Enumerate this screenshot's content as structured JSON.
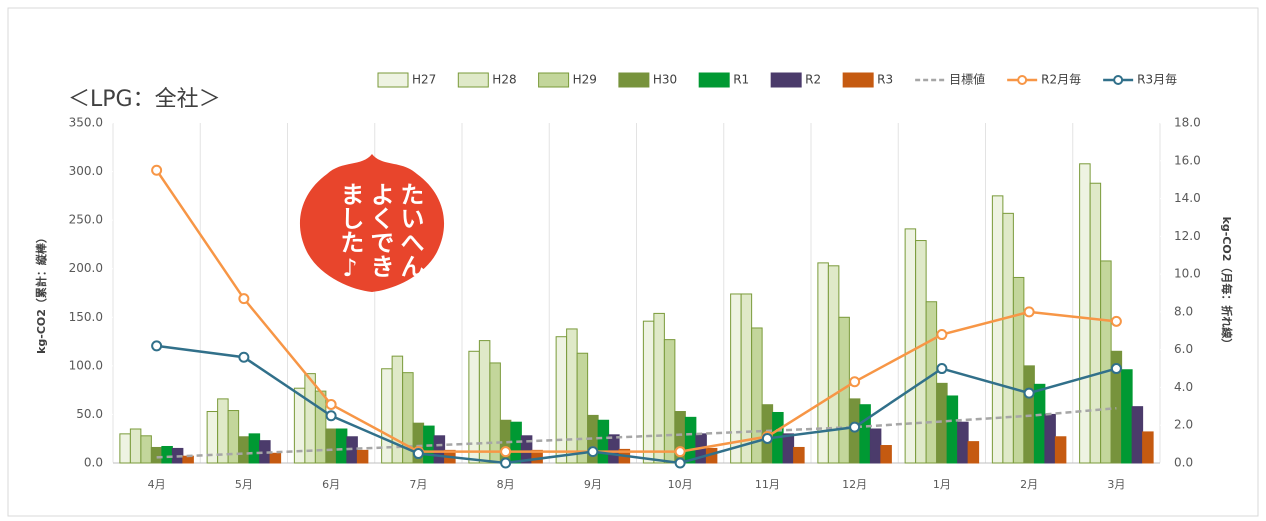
{
  "chart_data": {
    "type": "bar",
    "title": "＜LPG：全社＞",
    "y_label": "kg-CO2（累計：縦棒）",
    "y2_label": "kg-CO2（月毎：折れ線）",
    "annotations": [
      "たいへん",
      "よくでき",
      "ました♪"
    ],
    "categories": [
      "4月",
      "5月",
      "6月",
      "7月",
      "8月",
      "9月",
      "10月",
      "11月",
      "12月",
      "1月",
      "2月",
      "3月"
    ],
    "series": [
      {
        "name": "H27",
        "kind": "bar",
        "color": "#eef3e2",
        "edge": "#7a9a3a",
        "values": [
          30,
          53,
          77,
          97,
          115,
          130,
          146,
          174,
          206,
          241,
          275,
          308
        ]
      },
      {
        "name": "H28",
        "kind": "bar",
        "color": "#dfe9c8",
        "edge": "#7a9a3a",
        "values": [
          35,
          66,
          92,
          110,
          126,
          138,
          154,
          174,
          203,
          229,
          257,
          288
        ]
      },
      {
        "name": "H29",
        "kind": "bar",
        "color": "#c3d69b",
        "edge": "#7a9a3a",
        "values": [
          28,
          54,
          74,
          93,
          103,
          113,
          127,
          139,
          150,
          166,
          191,
          208
        ]
      },
      {
        "name": "H30",
        "kind": "bar",
        "color": "#77933c",
        "edge": "#77933c",
        "values": [
          16,
          27,
          35,
          41,
          44,
          49,
          53,
          60,
          66,
          82,
          100,
          115
        ]
      },
      {
        "name": "R1",
        "kind": "bar",
        "color": "#009933",
        "edge": "#009933",
        "values": [
          17,
          30,
          35,
          38,
          42,
          44,
          47,
          52,
          60,
          69,
          81,
          96
        ]
      },
      {
        "name": "R2",
        "kind": "bar",
        "color": "#4b3b6b",
        "edge": "#4b3b6b",
        "values": [
          15,
          23,
          27,
          28,
          28,
          29,
          30,
          30,
          35,
          42,
          50,
          58
        ]
      },
      {
        "name": "R3",
        "kind": "bar",
        "color": "#c55a11",
        "edge": "#c55a11",
        "values": [
          7,
          10,
          13,
          13,
          13,
          14,
          15,
          16,
          18,
          22,
          27,
          32
        ]
      },
      {
        "name": "目標値",
        "kind": "line",
        "axis": "y2",
        "dashed": true,
        "color": "#a6a6a6",
        "values": [
          0.3,
          0.5,
          0.7,
          0.9,
          1.1,
          1.3,
          1.5,
          1.7,
          1.9,
          2.2,
          2.5,
          2.9
        ]
      },
      {
        "name": "R2月毎",
        "kind": "line",
        "axis": "y2",
        "markers": true,
        "color": "#f79646",
        "values": [
          15.5,
          8.7,
          3.1,
          0.6,
          0.6,
          0.6,
          0.6,
          1.4,
          4.3,
          6.8,
          8.0,
          7.5
        ]
      },
      {
        "name": "R3月毎",
        "kind": "line",
        "axis": "y2",
        "markers": true,
        "color": "#31708a",
        "values": [
          6.2,
          5.6,
          2.5,
          0.5,
          0,
          0.6,
          0,
          1.3,
          1.9,
          5.0,
          3.7,
          5.0
        ]
      }
    ],
    "ylim": [
      0,
      350
    ],
    "yticks": [
      {
        "value": 0,
        "label": "0.0"
      },
      {
        "value": 50,
        "label": "50.0"
      },
      {
        "value": 100,
        "label": "100.0"
      },
      {
        "value": 150,
        "label": "150.0"
      },
      {
        "value": 200,
        "label": "200.0"
      },
      {
        "value": 250,
        "label": "250.0"
      },
      {
        "value": 300,
        "label": "300.0"
      },
      {
        "value": 350,
        "label": "350.0"
      }
    ],
    "y2lim": [
      0,
      18
    ],
    "y2ticks": [
      {
        "value": 0,
        "label": "0.0"
      },
      {
        "value": 2,
        "label": "2.0"
      },
      {
        "value": 4,
        "label": "4.0"
      },
      {
        "value": 6,
        "label": "6.0"
      },
      {
        "value": 8,
        "label": "8.0"
      },
      {
        "value": 10,
        "label": "10.0"
      },
      {
        "value": 12,
        "label": "12.0"
      },
      {
        "value": 14,
        "label": "14.0"
      },
      {
        "value": 16,
        "label": "16.0"
      },
      {
        "value": 18,
        "label": "18.0"
      }
    ],
    "grid": "x",
    "legend": "top"
  }
}
